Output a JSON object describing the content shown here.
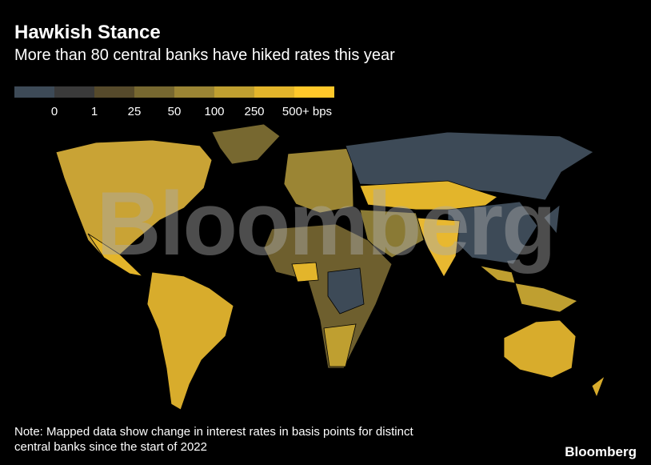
{
  "header": {
    "title": "Hawkish Stance",
    "subtitle": "More than 80 central banks have hiked rates this year"
  },
  "legend": {
    "colors": [
      "#3d4a57",
      "#3a3a3a",
      "#564a2b",
      "#776830",
      "#9b8534",
      "#bf9f30",
      "#e3b52b",
      "#ffc82a"
    ],
    "labels": [
      "0",
      "1",
      "25",
      "50",
      "100",
      "250",
      "500+ bps"
    ]
  },
  "watermark": "Bloomberg",
  "note": [
    "Note: Mapped data show change in interest rates in basis points for distinct",
    "central banks since the start of 2022"
  ],
  "source": "Bloomberg"
}
